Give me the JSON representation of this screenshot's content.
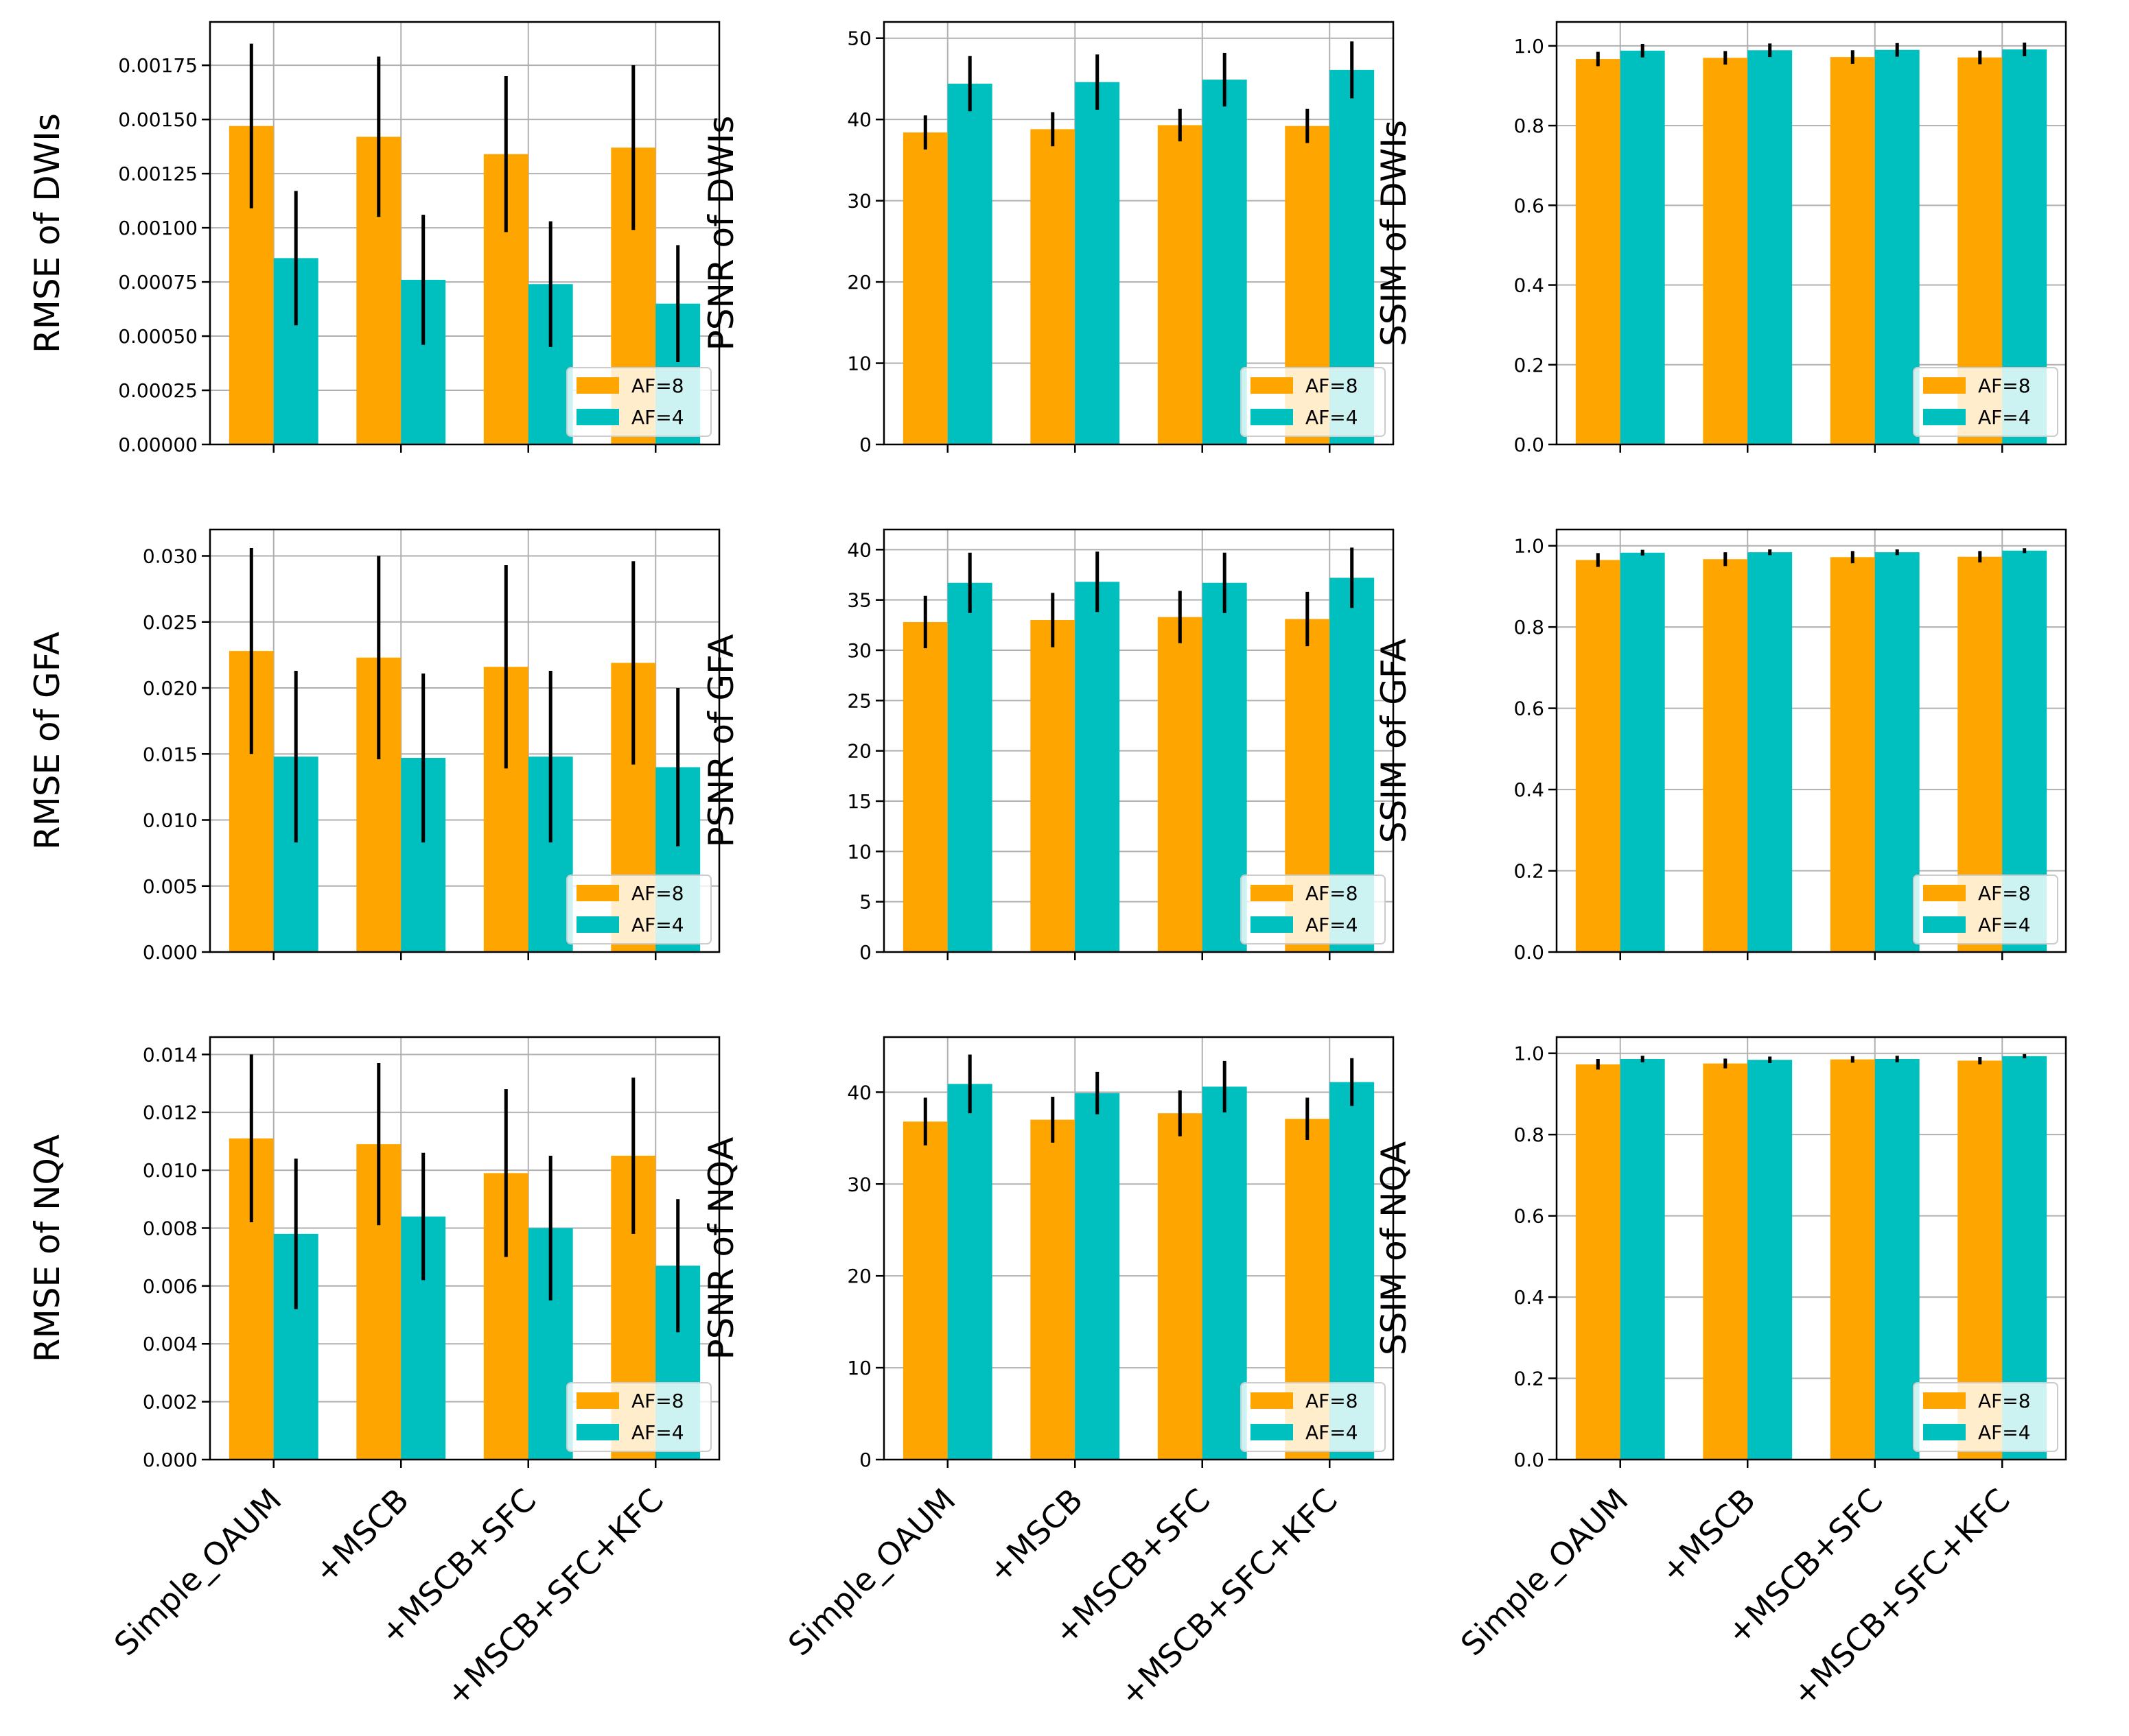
{
  "colors": {
    "af8": "#ffa500",
    "af4": "#00bfbf"
  },
  "chart_data": [
    {
      "type": "bar",
      "ylabel": "RMSE of DWIs",
      "categories": [
        "Simple_OAUM",
        "+MSCB",
        "+MSCB+SFC",
        "+MSCB+SFC+KFC"
      ],
      "ylim": [
        0,
        0.00195
      ],
      "yticks": [
        "0.00000",
        "0.00025",
        "0.00050",
        "0.00075",
        "0.00100",
        "0.00125",
        "0.00150",
        "0.00175"
      ],
      "legend_loc": "lower right",
      "series": [
        {
          "name": "AF=8",
          "values": [
            0.00147,
            0.00142,
            0.00134,
            0.00137
          ],
          "errors": [
            0.00038,
            0.00037,
            0.00036,
            0.00038
          ]
        },
        {
          "name": "AF=4",
          "values": [
            0.00086,
            0.00076,
            0.00074,
            0.00065
          ],
          "errors": [
            0.00031,
            0.0003,
            0.00029,
            0.00027
          ]
        }
      ]
    },
    {
      "type": "bar",
      "ylabel": "PSNR of DWIs",
      "categories": [
        "Simple_OAUM",
        "+MSCB",
        "+MSCB+SFC",
        "+MSCB+SFC+KFC"
      ],
      "ylim": [
        0,
        52
      ],
      "yticks": [
        "0",
        "10",
        "20",
        "30",
        "40",
        "50"
      ],
      "legend_loc": "lower right",
      "series": [
        {
          "name": "AF=8",
          "values": [
            38.4,
            38.8,
            39.3,
            39.2
          ],
          "errors": [
            2.1,
            2.1,
            2.0,
            2.1
          ]
        },
        {
          "name": "AF=4",
          "values": [
            44.4,
            44.6,
            44.9,
            46.1
          ],
          "errors": [
            3.4,
            3.4,
            3.3,
            3.5
          ]
        }
      ]
    },
    {
      "type": "bar",
      "ylabel": "SSIM of DWIs",
      "categories": [
        "Simple_OAUM",
        "+MSCB",
        "+MSCB+SFC",
        "+MSCB+SFC+KFC"
      ],
      "ylim": [
        0,
        1.06
      ],
      "yticks": [
        "0.0",
        "0.2",
        "0.4",
        "0.6",
        "0.8",
        "1.0"
      ],
      "legend_loc": "lower right",
      "series": [
        {
          "name": "AF=8",
          "values": [
            0.967,
            0.97,
            0.972,
            0.971
          ],
          "errors": [
            0.018,
            0.017,
            0.017,
            0.017
          ]
        },
        {
          "name": "AF=4",
          "values": [
            0.988,
            0.989,
            0.99,
            0.991
          ],
          "errors": [
            0.017,
            0.017,
            0.017,
            0.017
          ]
        }
      ]
    },
    {
      "type": "bar",
      "ylabel": "RMSE of GFA",
      "categories": [
        "Simple_OAUM",
        "+MSCB",
        "+MSCB+SFC",
        "+MSCB+SFC+KFC"
      ],
      "ylim": [
        0,
        0.032
      ],
      "yticks": [
        "0.000",
        "0.005",
        "0.010",
        "0.015",
        "0.020",
        "0.025",
        "0.030"
      ],
      "legend_loc": "lower right",
      "series": [
        {
          "name": "AF=8",
          "values": [
            0.0228,
            0.0223,
            0.0216,
            0.0219
          ],
          "errors": [
            0.0078,
            0.0077,
            0.0077,
            0.0077
          ]
        },
        {
          "name": "AF=4",
          "values": [
            0.0148,
            0.0147,
            0.0148,
            0.014
          ],
          "errors": [
            0.0065,
            0.0064,
            0.0065,
            0.006
          ]
        }
      ]
    },
    {
      "type": "bar",
      "ylabel": "PSNR of GFA",
      "categories": [
        "Simple_OAUM",
        "+MSCB",
        "+MSCB+SFC",
        "+MSCB+SFC+KFC"
      ],
      "ylim": [
        0,
        42
      ],
      "yticks": [
        "0",
        "5",
        "10",
        "15",
        "20",
        "25",
        "30",
        "35",
        "40"
      ],
      "legend_loc": "lower right",
      "series": [
        {
          "name": "AF=8",
          "values": [
            32.8,
            33.0,
            33.3,
            33.1
          ],
          "errors": [
            2.6,
            2.7,
            2.6,
            2.7
          ]
        },
        {
          "name": "AF=4",
          "values": [
            36.7,
            36.8,
            36.7,
            37.2
          ],
          "errors": [
            3.0,
            3.0,
            3.0,
            3.0
          ]
        }
      ]
    },
    {
      "type": "bar",
      "ylabel": "SSIM of GFA",
      "categories": [
        "Simple_OAUM",
        "+MSCB",
        "+MSCB+SFC",
        "+MSCB+SFC+KFC"
      ],
      "ylim": [
        0,
        1.04
      ],
      "yticks": [
        "0.0",
        "0.2",
        "0.4",
        "0.6",
        "0.8",
        "1.0"
      ],
      "legend_loc": "lower right",
      "series": [
        {
          "name": "AF=8",
          "values": [
            0.965,
            0.967,
            0.972,
            0.973
          ],
          "errors": [
            0.017,
            0.017,
            0.015,
            0.014
          ]
        },
        {
          "name": "AF=4",
          "values": [
            0.983,
            0.984,
            0.984,
            0.988
          ],
          "errors": [
            0.007,
            0.007,
            0.007,
            0.006
          ]
        }
      ]
    },
    {
      "type": "bar",
      "ylabel": "RMSE of NQA",
      "categories": [
        "Simple_OAUM",
        "+MSCB",
        "+MSCB+SFC",
        "+MSCB+SFC+KFC"
      ],
      "ylim": [
        0,
        0.0146
      ],
      "yticks": [
        "0.000",
        "0.002",
        "0.004",
        "0.006",
        "0.008",
        "0.010",
        "0.012",
        "0.014"
      ],
      "legend_loc": "lower right",
      "series": [
        {
          "name": "AF=8",
          "values": [
            0.0111,
            0.0109,
            0.0099,
            0.0105
          ],
          "errors": [
            0.0029,
            0.0028,
            0.0029,
            0.0027
          ]
        },
        {
          "name": "AF=4",
          "values": [
            0.0078,
            0.0084,
            0.008,
            0.0067
          ],
          "errors": [
            0.0026,
            0.0022,
            0.0025,
            0.0023
          ]
        }
      ]
    },
    {
      "type": "bar",
      "ylabel": "PSNR of NQA",
      "categories": [
        "Simple_OAUM",
        "+MSCB",
        "+MSCB+SFC",
        "+MSCB+SFC+KFC"
      ],
      "ylim": [
        0,
        46
      ],
      "yticks": [
        "0",
        "10",
        "20",
        "30",
        "40"
      ],
      "legend_loc": "lower right",
      "series": [
        {
          "name": "AF=8",
          "values": [
            36.8,
            37.0,
            37.7,
            37.1
          ],
          "errors": [
            2.6,
            2.5,
            2.5,
            2.3
          ]
        },
        {
          "name": "AF=4",
          "values": [
            40.9,
            39.9,
            40.6,
            41.1
          ],
          "errors": [
            3.2,
            2.3,
            2.8,
            2.6
          ]
        }
      ]
    },
    {
      "type": "bar",
      "ylabel": "SSIM of NQA",
      "categories": [
        "Simple_OAUM",
        "+MSCB",
        "+MSCB+SFC",
        "+MSCB+SFC+KFC"
      ],
      "ylim": [
        0,
        1.04
      ],
      "yticks": [
        "0.0",
        "0.2",
        "0.4",
        "0.6",
        "0.8",
        "1.0"
      ],
      "legend_loc": "lower right",
      "series": [
        {
          "name": "AF=8",
          "values": [
            0.973,
            0.975,
            0.985,
            0.982
          ],
          "errors": [
            0.013,
            0.012,
            0.008,
            0.009
          ]
        },
        {
          "name": "AF=4",
          "values": [
            0.986,
            0.984,
            0.986,
            0.993
          ],
          "errors": [
            0.008,
            0.008,
            0.008,
            0.005
          ]
        }
      ]
    }
  ]
}
